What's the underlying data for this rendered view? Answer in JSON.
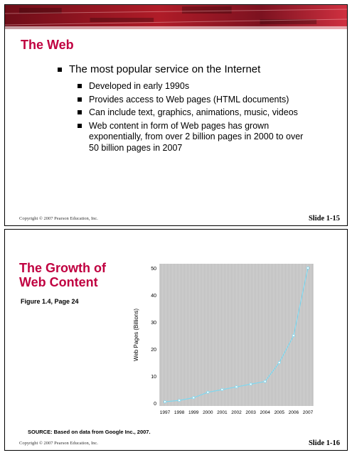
{
  "slide1": {
    "title": "The Web",
    "bullet_main": "The most popular service on the Internet",
    "sub_bullets": [
      "Developed in early 1990s",
      "Provides access to Web pages (HTML documents)",
      "Can include text, graphics, animations, music, videos",
      "Web content in form of Web pages has grown exponentially, from over 2 billion pages in 2000 to over 50 billion pages in 2007"
    ],
    "copyright": "Copyright © 2007 Pearson Education, Inc.",
    "slide_number": "Slide 1-15"
  },
  "slide2": {
    "title_line1": "The Growth of",
    "title_line2": "Web Content",
    "figure_caption": "Figure 1.4, Page 24",
    "source": "SOURCE: Based on data from Google Inc., 2007.",
    "copyright": "Copyright © 2007 Pearson Education, Inc.",
    "slide_number": "Slide 1-16"
  },
  "colors": {
    "title": "#c00040",
    "banner": "#9a1020",
    "line": "#7fd8f0"
  },
  "chart_data": {
    "type": "line",
    "categories": [
      "1997",
      "1998",
      "1999",
      "2000",
      "2001",
      "2002",
      "2003",
      "2004",
      "2005",
      "2006",
      "2007"
    ],
    "values": [
      0.5,
      1,
      2,
      4,
      5,
      6,
      7,
      8,
      15,
      25,
      50
    ],
    "ylabel": "Web Pages (Billions)",
    "yticks": [
      0,
      10,
      20,
      30,
      40,
      50
    ],
    "ylim": [
      0,
      50
    ],
    "grid": true
  }
}
